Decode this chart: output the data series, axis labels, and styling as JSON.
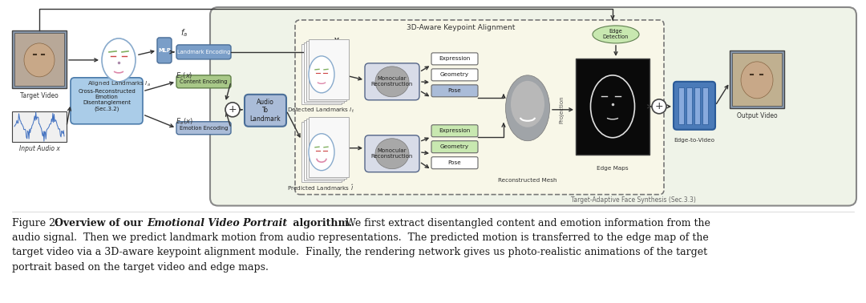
{
  "bg_color": "#ffffff",
  "outer_bg": "#eff3e8",
  "inner_bg": "#f5f5e0",
  "box_blue_dark": "#6b8cba",
  "box_blue_light": "#afc6e8",
  "box_green_light": "#b8d8a0",
  "box_white": "#ffffff",
  "box_gray": "#d0d4dc",
  "text_dark": "#1a1a1a",
  "text_mid": "#444444",
  "arrow_color": "#333333",
  "caption_lines": [
    [
      "Figure 2: ",
      false,
      false
    ],
    [
      "Overview of our ",
      true,
      false
    ],
    [
      "Emotional Video Portrait",
      true,
      true
    ],
    [
      " algorithm.",
      true,
      false
    ],
    [
      "  We first extract disentangled content and emotion information from the",
      false,
      false
    ]
  ],
  "caption_line2": "audio signal.  Then we predict landmark motion from audio representations.  The predicted motion is transferred to the edge map of the",
  "caption_line3": "target video via a 3D-aware keypoint alignment module.  Finally, the rendering network gives us photo-realistic animations of the target",
  "caption_line4": "portrait based on the target video and edge maps."
}
